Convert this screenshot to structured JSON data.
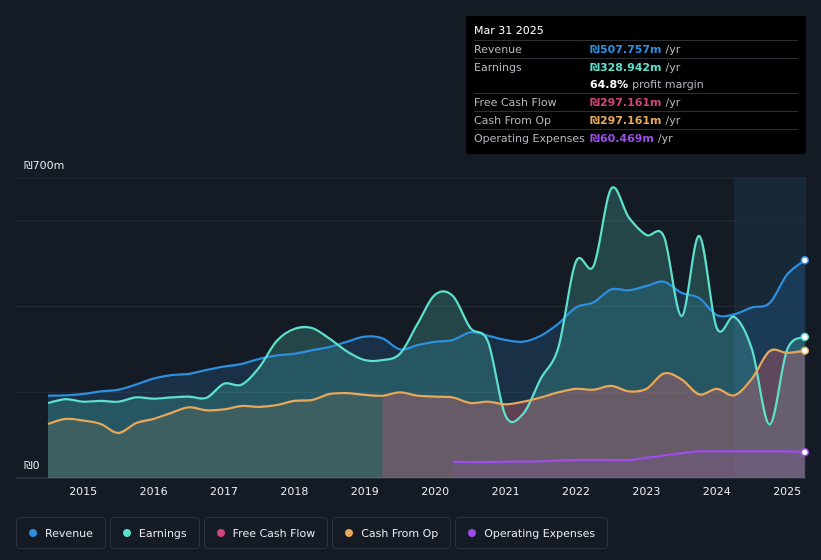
{
  "tooltip": {
    "date": "Mar 31 2025",
    "rows": [
      {
        "label": "Revenue",
        "value": "₪507.757m",
        "unit": "/yr",
        "color": "#2d8fe0"
      },
      {
        "label": "Earnings",
        "value": "₪328.942m",
        "unit": "/yr",
        "color": "#5de0cc"
      },
      {
        "label": "",
        "value": "64.8%",
        "unit": "profit margin",
        "color": "#ffffff"
      },
      {
        "label": "Free Cash Flow",
        "value": "₪297.161m",
        "unit": "/yr",
        "color": "#d0467a"
      },
      {
        "label": "Cash From Op",
        "value": "₪297.161m",
        "unit": "/yr",
        "color": "#e8a85a"
      },
      {
        "label": "Operating Expenses",
        "value": "₪60.469m",
        "unit": "/yr",
        "color": "#9b4ee8"
      }
    ]
  },
  "legend": [
    {
      "label": "Revenue",
      "color": "#2d8fe0"
    },
    {
      "label": "Earnings",
      "color": "#5de0cc"
    },
    {
      "label": "Free Cash Flow",
      "color": "#d0467a"
    },
    {
      "label": "Cash From Op",
      "color": "#e8a85a"
    },
    {
      "label": "Operating Expenses",
      "color": "#9b4ee8"
    }
  ],
  "chart_data": {
    "type": "area",
    "title": "",
    "ylabel": "",
    "xlabel": "",
    "y_axis_labels": {
      "top": "₪700m",
      "bottom": "₪0"
    },
    "ylim": [
      0,
      700
    ],
    "xlim": [
      2014.5,
      2025.25
    ],
    "x_ticks": [
      "2015",
      "2016",
      "2017",
      "2018",
      "2019",
      "2020",
      "2021",
      "2022",
      "2023",
      "2024",
      "2025"
    ],
    "forecast_start": 2024.25,
    "series": [
      {
        "name": "Revenue",
        "color": "#2d8fe0",
        "x": [
          2014.5,
          2014.75,
          2015,
          2015.25,
          2015.5,
          2015.75,
          2016,
          2016.25,
          2016.5,
          2016.75,
          2017,
          2017.25,
          2017.5,
          2017.75,
          2018,
          2018.25,
          2018.5,
          2018.75,
          2019,
          2019.25,
          2019.5,
          2019.75,
          2020,
          2020.25,
          2020.5,
          2020.75,
          2021,
          2021.25,
          2021.5,
          2021.75,
          2022,
          2022.25,
          2022.5,
          2022.75,
          2023,
          2023.25,
          2023.5,
          2023.75,
          2024,
          2024.25,
          2024.5,
          2024.75,
          2025,
          2025.25
        ],
        "values": [
          192,
          193,
          196,
          202,
          206,
          218,
          232,
          240,
          243,
          252,
          260,
          266,
          278,
          286,
          290,
          298,
          306,
          318,
          330,
          326,
          300,
          310,
          318,
          322,
          340,
          332,
          322,
          318,
          332,
          360,
          398,
          410,
          440,
          438,
          448,
          458,
          432,
          420,
          380,
          382,
          398,
          408,
          475,
          508
        ]
      },
      {
        "name": "Earnings",
        "color": "#5de0cc",
        "x": [
          2014.5,
          2014.75,
          2015,
          2015.25,
          2015.5,
          2015.75,
          2016,
          2016.25,
          2016.5,
          2016.75,
          2017,
          2017.25,
          2017.5,
          2017.75,
          2018,
          2018.25,
          2018.5,
          2018.75,
          2019,
          2019.25,
          2019.5,
          2019.75,
          2020,
          2020.25,
          2020.5,
          2020.75,
          2021,
          2021.25,
          2021.5,
          2021.75,
          2022,
          2022.25,
          2022.5,
          2022.75,
          2023,
          2023.25,
          2023.5,
          2023.75,
          2024,
          2024.25,
          2024.5,
          2024.75,
          2025,
          2025.25
        ],
        "values": [
          175,
          184,
          178,
          180,
          178,
          188,
          185,
          188,
          190,
          187,
          220,
          218,
          258,
          320,
          348,
          350,
          325,
          295,
          275,
          275,
          290,
          360,
          428,
          425,
          350,
          318,
          145,
          150,
          232,
          305,
          505,
          495,
          675,
          608,
          567,
          563,
          378,
          565,
          350,
          376,
          300,
          125,
          300,
          329
        ]
      },
      {
        "name": "Free Cash Flow",
        "color": "#d0467a",
        "x": [
          2019.25,
          2019.5,
          2019.75,
          2020,
          2020.25,
          2020.5,
          2020.75,
          2021,
          2021.25,
          2021.5,
          2021.75,
          2022,
          2022.25,
          2022.5,
          2022.75,
          2023,
          2023.25,
          2023.5,
          2023.75,
          2024,
          2024.25,
          2024.5,
          2024.75,
          2025,
          2025.25
        ],
        "values": [
          192,
          200,
          192,
          190,
          188,
          175,
          178,
          172,
          178,
          188,
          200,
          208,
          206,
          215,
          202,
          208,
          244,
          230,
          195,
          208,
          193,
          232,
          296,
          292,
          297
        ]
      },
      {
        "name": "Cash From Op",
        "color": "#e8a85a",
        "x": [
          2014.5,
          2014.75,
          2015,
          2015.25,
          2015.5,
          2015.75,
          2016,
          2016.25,
          2016.5,
          2016.75,
          2017,
          2017.25,
          2017.5,
          2017.75,
          2018,
          2018.25,
          2018.5,
          2018.75,
          2019,
          2019.25,
          2019.5,
          2019.75,
          2020,
          2020.25,
          2020.5,
          2020.75,
          2021,
          2021.25,
          2021.5,
          2021.75,
          2022,
          2022.25,
          2022.5,
          2022.75,
          2023,
          2023.25,
          2023.5,
          2023.75,
          2024,
          2024.25,
          2024.5,
          2024.75,
          2025,
          2025.25
        ],
        "values": [
          126,
          138,
          134,
          126,
          105,
          128,
          138,
          152,
          165,
          158,
          160,
          168,
          166,
          170,
          180,
          182,
          196,
          198,
          194,
          192,
          200,
          192,
          190,
          188,
          175,
          178,
          172,
          178,
          188,
          200,
          208,
          206,
          215,
          202,
          208,
          244,
          230,
          195,
          208,
          193,
          232,
          296,
          292,
          297
        ]
      },
      {
        "name": "Operating Expenses",
        "color": "#9b4ee8",
        "x": [
          2020.25,
          2020.5,
          2021,
          2021.5,
          2022,
          2022.5,
          2022.75,
          2023,
          2023.5,
          2023.75,
          2024,
          2024.5,
          2025,
          2025.25
        ],
        "values": [
          38,
          37,
          38,
          39,
          42,
          42,
          42,
          47,
          58,
          62,
          62,
          62,
          62,
          60
        ]
      }
    ]
  }
}
